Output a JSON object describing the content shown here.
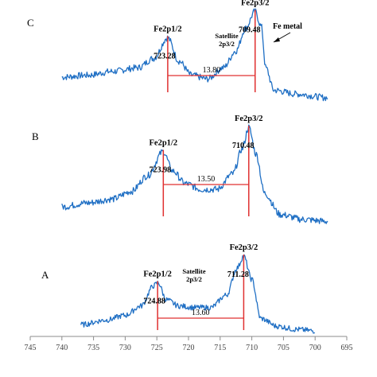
{
  "chart_data": {
    "type": "line",
    "x_axis": {
      "min": 695,
      "max": 745,
      "reversed": true,
      "ticks": [
        745,
        740,
        735,
        730,
        725,
        720,
        715,
        710,
        705,
        700,
        695
      ],
      "label": ""
    },
    "y_axis": {
      "visible": false
    },
    "grid": false,
    "panels": [
      {
        "id": "C",
        "label": "C",
        "x_start": 740,
        "x_end": 698,
        "key": [
          [
            740,
            0.28
          ],
          [
            736,
            0.3
          ],
          [
            732,
            0.34
          ],
          [
            728,
            0.38
          ],
          [
            725.5,
            0.48
          ],
          [
            723.3,
            0.7
          ],
          [
            721.5,
            0.45
          ],
          [
            719.5,
            0.3
          ],
          [
            717,
            0.26
          ],
          [
            714.5,
            0.38
          ],
          [
            712.5,
            0.56
          ],
          [
            711,
            0.8
          ],
          [
            709.5,
            0.98
          ],
          [
            708.5,
            0.82
          ],
          [
            707.8,
            0.38
          ],
          [
            706.5,
            0.14
          ],
          [
            703,
            0.1
          ],
          [
            698,
            0.06
          ]
        ],
        "peaks": [
          {
            "name": "Fe2p1/2",
            "energy": "723.28",
            "x": 723.28
          },
          {
            "name": "Fe2p3/2",
            "energy": "709.48",
            "x": 709.48
          }
        ],
        "splitting": "13.80",
        "satellite": {
          "line1": "Satellite",
          "line2": "2p3/2"
        },
        "metal_label": "Fe metal"
      },
      {
        "id": "B",
        "label": "B",
        "x_start": 740,
        "x_end": 698,
        "key": [
          [
            740,
            0.18
          ],
          [
            736,
            0.22
          ],
          [
            732,
            0.26
          ],
          [
            729,
            0.34
          ],
          [
            726.5,
            0.5
          ],
          [
            724,
            0.75
          ],
          [
            722.5,
            0.55
          ],
          [
            720.5,
            0.42
          ],
          [
            718,
            0.36
          ],
          [
            715.5,
            0.36
          ],
          [
            713,
            0.52
          ],
          [
            711.5,
            0.78
          ],
          [
            710.5,
            1.0
          ],
          [
            709.3,
            0.72
          ],
          [
            708,
            0.32
          ],
          [
            705.5,
            0.1
          ],
          [
            702,
            0.05
          ],
          [
            698,
            0.03
          ]
        ],
        "peaks": [
          {
            "name": "Fe2p1/2",
            "energy": "723.98",
            "x": 723.98
          },
          {
            "name": "Fe2p3/2",
            "energy": "710.48",
            "x": 710.48
          }
        ],
        "splitting": "13.50"
      },
      {
        "id": "A",
        "label": "A",
        "x_start": 737,
        "x_end": 700,
        "key": [
          [
            737,
            0.12
          ],
          [
            733,
            0.18
          ],
          [
            730,
            0.24
          ],
          [
            727.5,
            0.36
          ],
          [
            725.5,
            0.62
          ],
          [
            724.8,
            0.66
          ],
          [
            723.5,
            0.44
          ],
          [
            721.5,
            0.36
          ],
          [
            719,
            0.34
          ],
          [
            716.5,
            0.34
          ],
          [
            714,
            0.5
          ],
          [
            712.3,
            0.85
          ],
          [
            711.3,
            1.0
          ],
          [
            710,
            0.7
          ],
          [
            708.6,
            0.2
          ],
          [
            706,
            0.1
          ],
          [
            703,
            0.06
          ],
          [
            700,
            0.04
          ]
        ],
        "peaks": [
          {
            "name": "Fe2p1/2",
            "energy": "724.88",
            "x": 724.88
          },
          {
            "name": "Fe2p3/2",
            "energy": "711.28",
            "x": 711.28
          }
        ],
        "splitting": "13.60",
        "satellite": {
          "line1": "Satellite",
          "line2": "2p3/2"
        }
      }
    ]
  }
}
